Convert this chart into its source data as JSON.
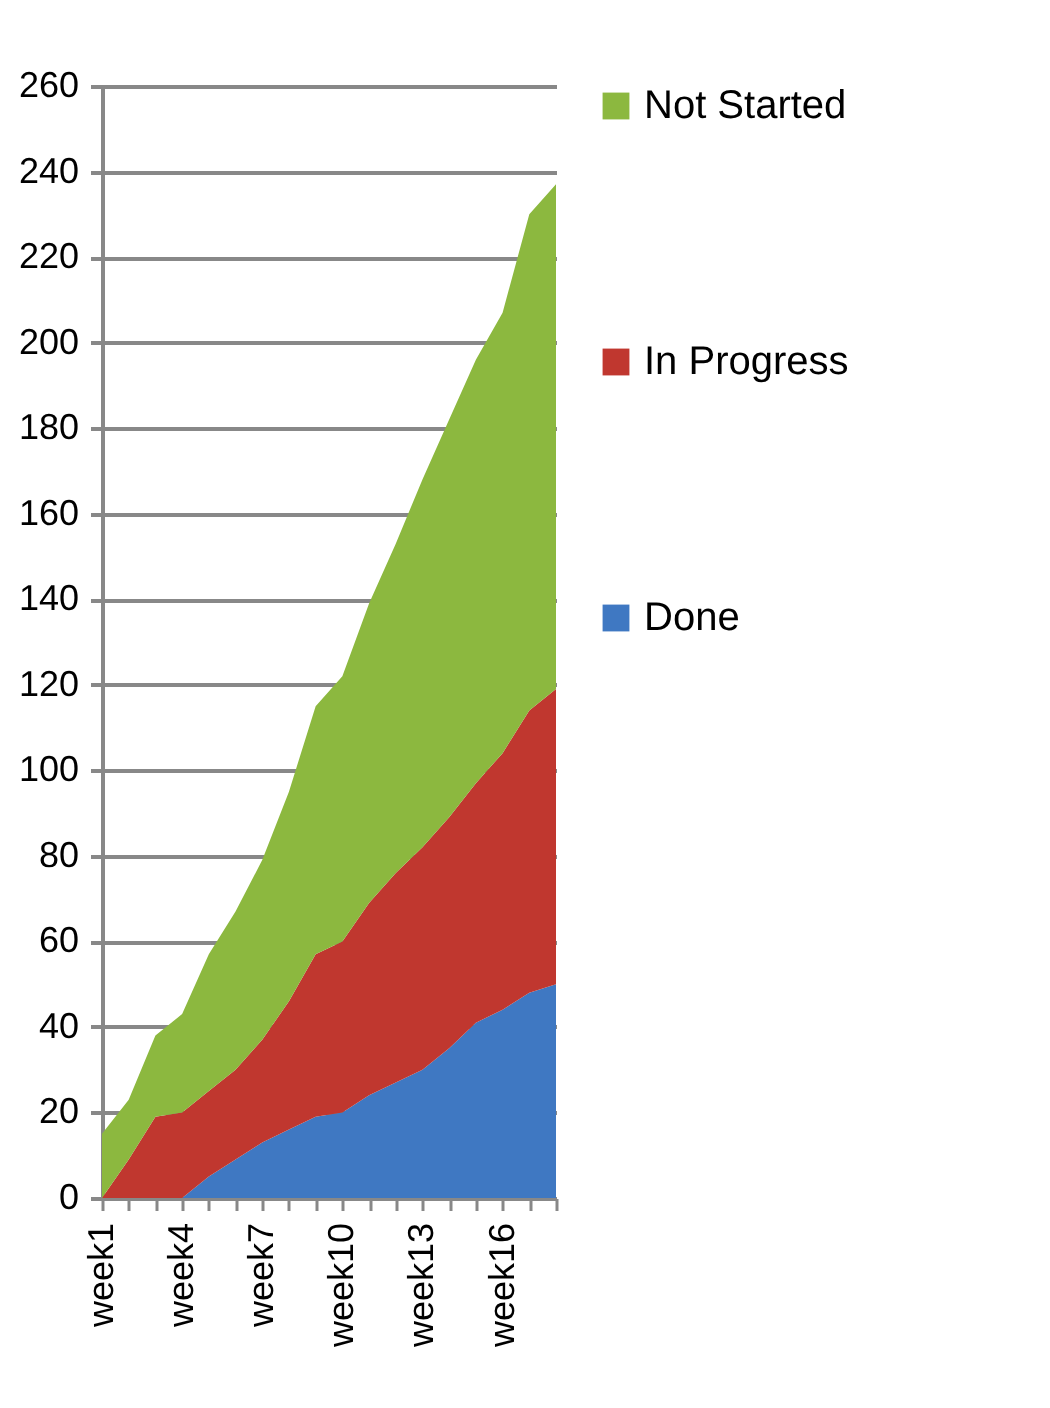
{
  "chart_data": {
    "type": "area",
    "stacked": true,
    "categories": [
      "week1",
      null,
      null,
      "week4",
      null,
      null,
      "week7",
      null,
      null,
      "week10",
      null,
      null,
      "week13",
      null,
      null,
      "week16",
      null,
      null
    ],
    "series": [
      {
        "name": "Done",
        "color": "#3f78c2",
        "values": [
          0,
          0,
          0,
          0,
          5,
          9,
          13,
          16,
          19,
          20,
          24,
          27,
          30,
          35,
          41,
          44,
          48,
          50
        ]
      },
      {
        "name": "In Progress",
        "color": "#c0372f",
        "values": [
          0,
          9,
          19,
          20,
          20,
          21,
          24,
          30,
          38,
          40,
          45,
          49,
          52,
          54,
          56,
          60,
          66,
          69
        ]
      },
      {
        "name": "Not Started",
        "color": "#8cb83f",
        "values": [
          15,
          14,
          19,
          23,
          32,
          37,
          42,
          49,
          58,
          62,
          70,
          77,
          86,
          93,
          99,
          103,
          116,
          118
        ]
      }
    ],
    "ylim": [
      0,
      260
    ],
    "yticks": [
      0,
      20,
      40,
      60,
      80,
      100,
      120,
      140,
      160,
      180,
      200,
      220,
      240,
      260
    ],
    "grid": "y",
    "legend": "right"
  }
}
